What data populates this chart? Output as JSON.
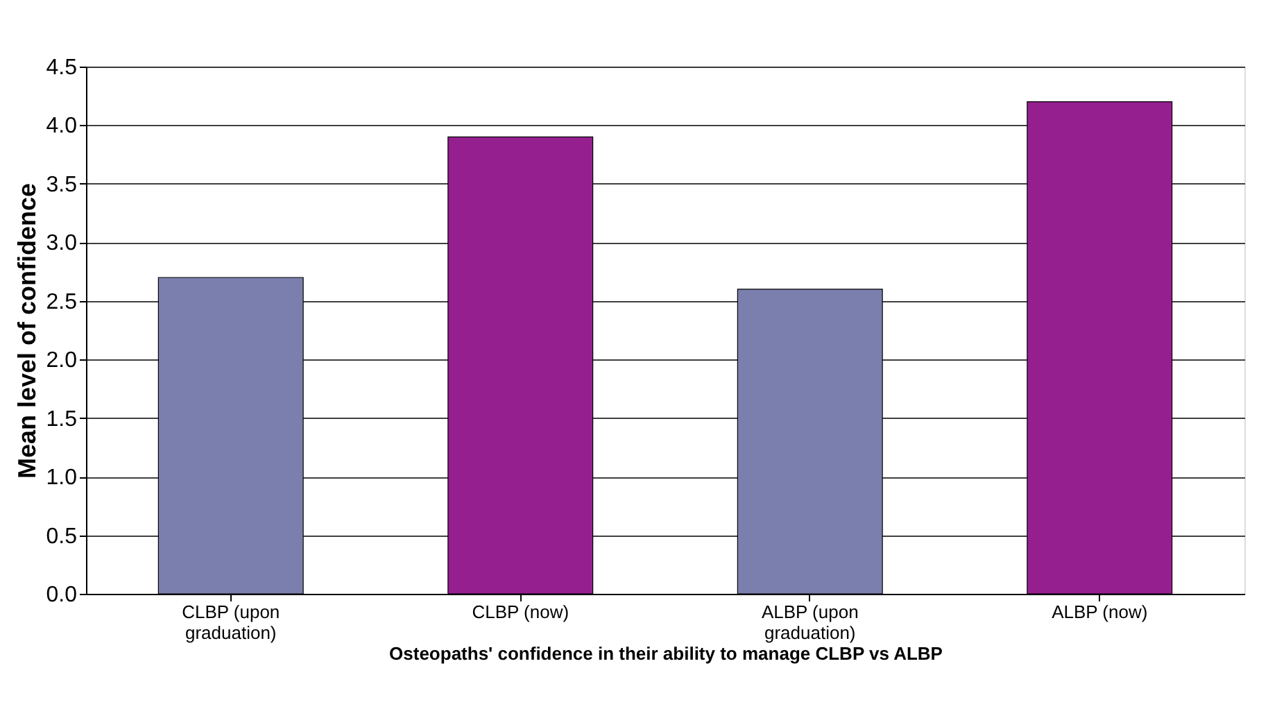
{
  "chart_data": {
    "type": "bar",
    "categories": [
      "CLBP (upon graduation)",
      "CLBP (now)",
      "ALBP (upon graduation)",
      "ALBP (now)"
    ],
    "values": [
      2.7,
      3.9,
      2.6,
      4.2
    ],
    "colors": [
      "#7b7fad",
      "#951f8f",
      "#7b7fad",
      "#951f8f"
    ],
    "xlabel": "Osteopaths' confidence in their ability to manage CLBP vs ALBP",
    "ylabel": "Mean level of confidence",
    "ylim": [
      0,
      4.5
    ],
    "yticks": [
      {
        "value": 0,
        "label": "0.0"
      },
      {
        "value": 0.5,
        "label": "0.5"
      },
      {
        "value": 1,
        "label": "1.0"
      },
      {
        "value": 1.5,
        "label": "1.5"
      },
      {
        "value": 2,
        "label": "2.0"
      },
      {
        "value": 2.5,
        "label": "2.5"
      },
      {
        "value": 3,
        "label": "3.0"
      },
      {
        "value": 3.5,
        "label": "3.5"
      },
      {
        "value": 4,
        "label": "4.0"
      },
      {
        "value": 4.5,
        "label": "4.5"
      }
    ],
    "grid": "y"
  }
}
